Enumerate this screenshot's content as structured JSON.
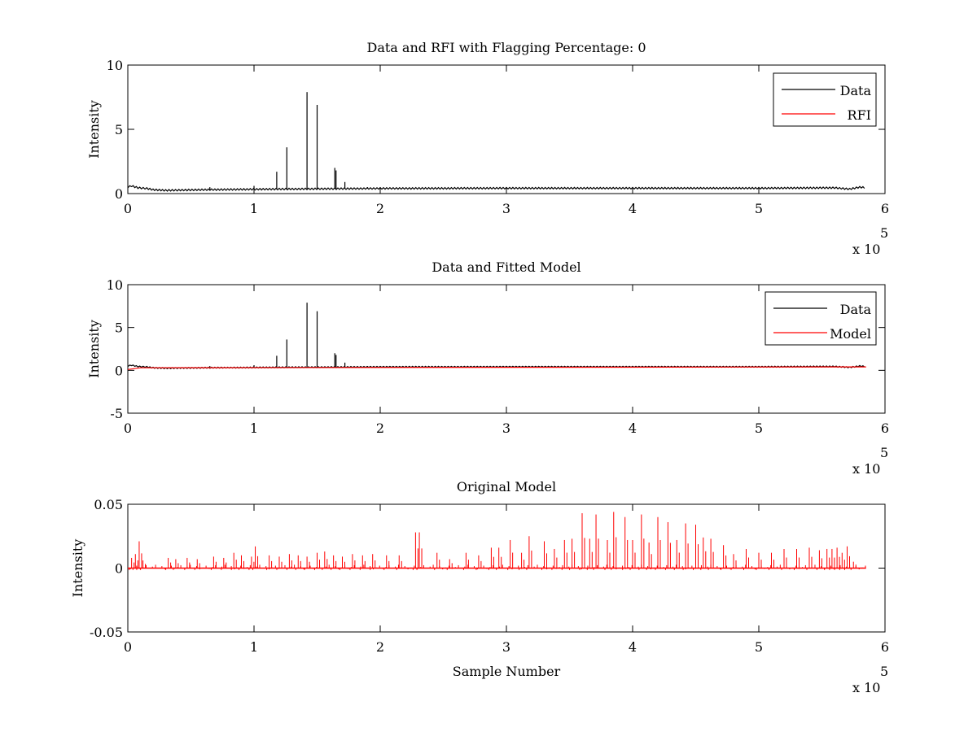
{
  "figure": {
    "background": "#ffffff"
  },
  "chart_data": [
    {
      "type": "line",
      "title": "Data and RFI with Flagging Percentage: 0",
      "xlabel": "",
      "ylabel": "Intensity",
      "xlim": [
        0,
        600000
      ],
      "ylim": [
        0,
        10
      ],
      "x_ticks": [
        0,
        1,
        2,
        3,
        4,
        5,
        6
      ],
      "x_tick_labels": [
        "0",
        "1",
        "2",
        "3",
        "4",
        "5",
        "6"
      ],
      "x_multiplier": "x 10",
      "x_multiplier_exp": "5",
      "y_ticks": [
        0,
        5,
        10
      ],
      "y_tick_labels": [
        "0",
        "5",
        "10"
      ],
      "legend": {
        "position": "top-right",
        "entries": [
          {
            "label": "Data",
            "color": "#000000"
          },
          {
            "label": "RFI",
            "color": "#ff0000"
          }
        ]
      },
      "baseline": [
        [
          0,
          0.5
        ],
        [
          3000,
          0.6
        ],
        [
          8000,
          0.45
        ],
        [
          15000,
          0.4
        ],
        [
          20000,
          0.3
        ],
        [
          30000,
          0.25
        ],
        [
          60000,
          0.3
        ],
        [
          120000,
          0.35
        ],
        [
          200000,
          0.4
        ],
        [
          300000,
          0.42
        ],
        [
          400000,
          0.42
        ],
        [
          500000,
          0.42
        ],
        [
          560000,
          0.45
        ],
        [
          572000,
          0.35
        ],
        [
          580000,
          0.5
        ],
        [
          585000,
          0.45
        ]
      ],
      "spikes": [
        [
          118000,
          1.7
        ],
        [
          126000,
          3.6
        ],
        [
          142000,
          7.9
        ],
        [
          150000,
          6.9
        ],
        [
          164000,
          2.0
        ],
        [
          165000,
          1.8
        ],
        [
          172000,
          0.9
        ],
        [
          100000,
          0.6
        ],
        [
          65000,
          0.5
        ],
        [
          190000,
          0.5
        ]
      ],
      "series": [
        {
          "name": "Data",
          "color": "#000000"
        },
        {
          "name": "RFI",
          "color": "#ff0000"
        }
      ]
    },
    {
      "type": "line",
      "title": "Data and Fitted Model",
      "xlabel": "",
      "ylabel": "Intensity",
      "xlim": [
        0,
        600000
      ],
      "ylim": [
        -5,
        10
      ],
      "x_ticks": [
        0,
        1,
        2,
        3,
        4,
        5,
        6
      ],
      "x_tick_labels": [
        "0",
        "1",
        "2",
        "3",
        "4",
        "5",
        "6"
      ],
      "x_multiplier": "x 10",
      "x_multiplier_exp": "5",
      "y_ticks": [
        -5,
        0,
        5,
        10
      ],
      "y_tick_labels": [
        "-5",
        "0",
        "5",
        "10"
      ],
      "legend": {
        "position": "top-right",
        "entries": [
          {
            "label": "Data",
            "color": "#000000"
          },
          {
            "label": "Model",
            "color": "#ff0000"
          }
        ]
      },
      "baseline": [
        [
          0,
          0.5
        ],
        [
          3000,
          0.6
        ],
        [
          8000,
          0.45
        ],
        [
          15000,
          0.4
        ],
        [
          20000,
          0.3
        ],
        [
          30000,
          0.25
        ],
        [
          60000,
          0.3
        ],
        [
          120000,
          0.35
        ],
        [
          200000,
          0.4
        ],
        [
          300000,
          0.42
        ],
        [
          400000,
          0.42
        ],
        [
          500000,
          0.42
        ],
        [
          560000,
          0.45
        ],
        [
          572000,
          0.35
        ],
        [
          580000,
          0.5
        ],
        [
          585000,
          0.45
        ]
      ],
      "spikes": [
        [
          118000,
          1.7
        ],
        [
          126000,
          3.6
        ],
        [
          142000,
          7.9
        ],
        [
          150000,
          6.9
        ],
        [
          164000,
          2.0
        ],
        [
          165000,
          1.8
        ],
        [
          172000,
          0.9
        ],
        [
          100000,
          0.6
        ],
        [
          65000,
          0.5
        ],
        [
          190000,
          0.5
        ]
      ],
      "model": [
        [
          0,
          0.1
        ],
        [
          10000,
          0.3
        ],
        [
          585000,
          0.4
        ]
      ],
      "series": [
        {
          "name": "Data",
          "color": "#000000"
        },
        {
          "name": "Model",
          "color": "#ff0000"
        }
      ]
    },
    {
      "type": "line",
      "title": "Original Model",
      "xlabel": "Sample Number",
      "ylabel": "Intensity",
      "xlim": [
        0,
        600000
      ],
      "ylim": [
        -0.05,
        0.05
      ],
      "x_ticks": [
        0,
        1,
        2,
        3,
        4,
        5,
        6
      ],
      "x_tick_labels": [
        "0",
        "1",
        "2",
        "3",
        "4",
        "5",
        "6"
      ],
      "x_multiplier": "x 10",
      "x_multiplier_exp": "5",
      "y_ticks": [
        -0.05,
        0,
        0.05
      ],
      "y_tick_labels": [
        "-0.05",
        "0",
        "0.05"
      ],
      "legend": null,
      "spikes": [
        [
          3000,
          0.008
        ],
        [
          6000,
          0.011
        ],
        [
          9000,
          0.021
        ],
        [
          12000,
          0.006
        ],
        [
          32000,
          0.008
        ],
        [
          38000,
          0.007
        ],
        [
          47000,
          0.008
        ],
        [
          55000,
          0.007
        ],
        [
          68000,
          0.009
        ],
        [
          76000,
          0.008
        ],
        [
          84000,
          0.012
        ],
        [
          90000,
          0.01
        ],
        [
          98000,
          0.009
        ],
        [
          101000,
          0.017
        ],
        [
          112000,
          0.01
        ],
        [
          120000,
          0.009
        ],
        [
          128000,
          0.011
        ],
        [
          135000,
          0.01
        ],
        [
          142000,
          0.009
        ],
        [
          150000,
          0.012
        ],
        [
          156000,
          0.013
        ],
        [
          163000,
          0.01
        ],
        [
          170000,
          0.009
        ],
        [
          178000,
          0.011
        ],
        [
          186000,
          0.01
        ],
        [
          194000,
          0.011
        ],
        [
          205000,
          0.01
        ],
        [
          215000,
          0.01
        ],
        [
          228000,
          0.028
        ],
        [
          231000,
          0.028
        ],
        [
          245000,
          0.012
        ],
        [
          255000,
          0.007
        ],
        [
          268000,
          0.012
        ],
        [
          278000,
          0.01
        ],
        [
          288000,
          0.016
        ],
        [
          294000,
          0.016
        ],
        [
          303000,
          0.022
        ],
        [
          312000,
          0.012
        ],
        [
          318000,
          0.025
        ],
        [
          330000,
          0.021
        ],
        [
          338000,
          0.015
        ],
        [
          346000,
          0.022
        ],
        [
          352000,
          0.023
        ],
        [
          360000,
          0.043
        ],
        [
          366000,
          0.023
        ],
        [
          371000,
          0.042
        ],
        [
          380000,
          0.022
        ],
        [
          385000,
          0.044
        ],
        [
          394000,
          0.04
        ],
        [
          400000,
          0.022
        ],
        [
          407000,
          0.042
        ],
        [
          413000,
          0.02
        ],
        [
          420000,
          0.04
        ],
        [
          428000,
          0.036
        ],
        [
          435000,
          0.022
        ],
        [
          442000,
          0.035
        ],
        [
          450000,
          0.034
        ],
        [
          456000,
          0.024
        ],
        [
          462000,
          0.023
        ],
        [
          472000,
          0.018
        ],
        [
          480000,
          0.011
        ],
        [
          490000,
          0.015
        ],
        [
          500000,
          0.012
        ],
        [
          510000,
          0.012
        ],
        [
          520000,
          0.015
        ],
        [
          530000,
          0.015
        ],
        [
          540000,
          0.016
        ],
        [
          548000,
          0.014
        ],
        [
          554000,
          0.015
        ],
        [
          558000,
          0.015
        ],
        [
          562000,
          0.016
        ],
        [
          566000,
          0.012
        ],
        [
          570000,
          0.017
        ],
        [
          575000,
          0.005
        ]
      ],
      "series": [
        {
          "name": "",
          "color": "#ff0000"
        }
      ]
    }
  ]
}
